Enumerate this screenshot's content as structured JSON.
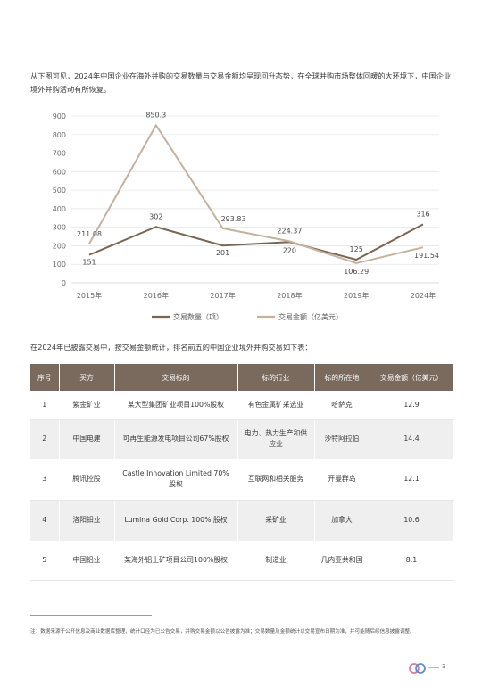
{
  "intro_text": "从下图可见，2024年中国企业在海外并购的交易数量与交易金额均呈现回升态势，在全球并购市场整体回暖的大环境下，中国企业境外并购活动有所恢复。",
  "chart_data": {
    "type": "line",
    "categories": [
      "2015年",
      "2016年",
      "2017年",
      "2018年",
      "2019年",
      "2024年"
    ],
    "ylim": [
      0,
      900
    ],
    "yticks": [
      0,
      100,
      200,
      300,
      400,
      500,
      600,
      700,
      800,
      900
    ],
    "grid": true,
    "legend_position": "bottom",
    "series": [
      {
        "name": "交易数量（项）",
        "values": [
          151,
          302,
          201,
          220,
          125,
          316
        ],
        "labels": [
          "151",
          "302",
          "201",
          "220",
          "125",
          "316"
        ],
        "color": "#7a6554"
      },
      {
        "name": "交易金额（亿美元）",
        "values": [
          211.08,
          850.3,
          293.83,
          224.37,
          106.29,
          191.54
        ],
        "labels": [
          "211.08",
          "850.3",
          "293.83",
          "224.37",
          "106.29",
          "191.54"
        ],
        "color": "#c4b29e"
      }
    ]
  },
  "para2": "在2024年已披露交易中，按交易金额统计，排名前五的中国企业境外并购交易如下表：",
  "table": {
    "headers": [
      "序号",
      "买方",
      "交易标的",
      "标的行业",
      "标的所在地",
      "交易金额（亿美元）"
    ],
    "rows": [
      {
        "no": "1",
        "buyer": "紫金矿业",
        "target": "某大型集团矿业项目100%股权",
        "industry": "有色金属矿采选业",
        "location": "哈萨克",
        "amount": "12.9"
      },
      {
        "no": "2",
        "buyer": "中国电建",
        "target": "可再生能源发电项目公司67%股权",
        "industry": "电力、热力生产和供应业",
        "location": "沙特阿拉伯",
        "amount": "14.4"
      },
      {
        "no": "3",
        "buyer": "腾讯控股",
        "target": "Castle Innovation Limited 70% 股权",
        "industry": "互联网和相关服务",
        "location": "开曼群岛",
        "amount": "12.1"
      },
      {
        "no": "4",
        "buyer": "洛阳钼业",
        "target": "Lumina Gold Corp. 100% 股权",
        "industry": "采矿业",
        "location": "加拿大",
        "amount": "10.6"
      },
      {
        "no": "5",
        "buyer": "中国铝业",
        "target": "某海外铝土矿项目公司100%股权",
        "industry": "制造业",
        "location": "几内亚共和国",
        "amount": "8.1"
      }
    ]
  },
  "footnote": "注：数据来源于公开信息及商业数据库整理，统计口径为已公告交易，并购交易金额以公告披露为准；交易数量及金额统计以交易宣布日期为准，并可能随后续信息披露调整。",
  "page_number": "3",
  "colors": {
    "accent": "#7a6a5e",
    "series1": "#7a6554",
    "series2": "#c4b29e",
    "logo_blue": "#5b8fc9",
    "logo_pink": "#d77aa6"
  }
}
